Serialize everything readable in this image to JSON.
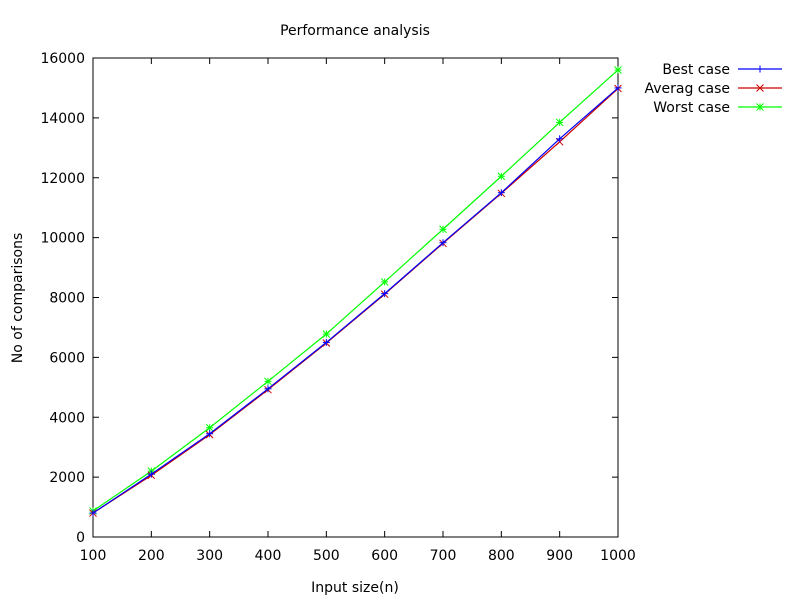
{
  "chart_data": {
    "type": "line",
    "title": "Performance analysis",
    "xlabel": "Input size(n)",
    "ylabel": "No of comparisons",
    "xlim": [
      100,
      1000
    ],
    "ylim": [
      0,
      16000
    ],
    "x_ticks": [
      100,
      200,
      300,
      400,
      500,
      600,
      700,
      800,
      900,
      1000
    ],
    "y_ticks": [
      0,
      2000,
      4000,
      6000,
      8000,
      10000,
      12000,
      14000,
      16000
    ],
    "grid": false,
    "legend_position": "top-right, outside plot",
    "x": [
      100,
      200,
      300,
      400,
      500,
      600,
      700,
      800,
      900,
      1000
    ],
    "series": [
      {
        "name": "Best case",
        "color": "#0000ff",
        "marker": "plus",
        "values": [
          800,
          2100,
          3450,
          4950,
          6500,
          8130,
          9830,
          11500,
          13300,
          15000
        ]
      },
      {
        "name": "Averag case",
        "color": "#cc0000",
        "marker": "cross",
        "values": [
          800,
          2060,
          3420,
          4920,
          6480,
          8110,
          9810,
          11480,
          13200,
          14980
        ]
      },
      {
        "name": "Worst case",
        "color": "#00ff00",
        "marker": "star",
        "values": [
          870,
          2200,
          3650,
          5200,
          6780,
          8520,
          10280,
          12050,
          13850,
          15600
        ]
      }
    ]
  }
}
